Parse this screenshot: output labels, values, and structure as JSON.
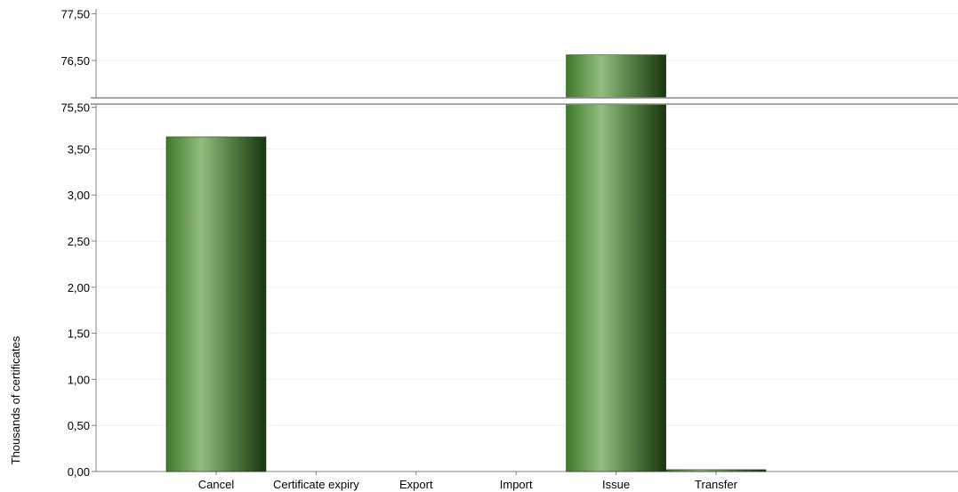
{
  "chart_data": {
    "type": "bar",
    "ylabel": "Thousands of certificates",
    "categories": [
      "Cancel",
      "Certificate expiry",
      "Export",
      "Import",
      "Issue",
      "Transfer"
    ],
    "values": [
      3.63,
      0,
      0,
      0,
      76.62,
      0.02
    ],
    "axis_break": {
      "lower_range": [
        0,
        3.75
      ],
      "upper_range": [
        75.45,
        77.5
      ]
    },
    "yticks_lower": [
      "0,00",
      "0,50",
      "1,00",
      "1,50",
      "2,00",
      "2,50",
      "3,00",
      "3,50"
    ],
    "yticks_upper": [
      "75,50",
      "76,50",
      "77,50"
    ],
    "grid": true,
    "legend": "none",
    "colors": {
      "bar_light": "#8fb97a",
      "bar_mid": "#4f8f38",
      "bar_dark": "#1e3d14",
      "axis": "#808080",
      "grid": "#f0f0f0"
    }
  }
}
